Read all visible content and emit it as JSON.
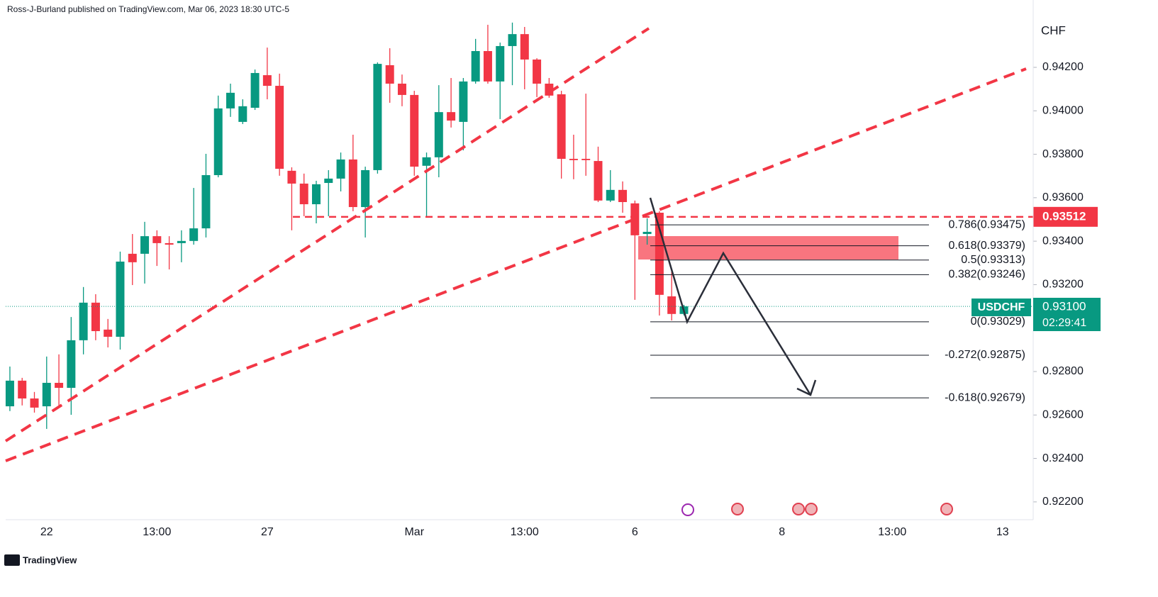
{
  "header": {
    "attribution": "Ross-J-Burland published on TradingView.com, Mar 06, 2023 18:30 UTC-5",
    "logo": "TradingView"
  },
  "chart_data": {
    "type": "candlestick",
    "currency": "CHF",
    "symbol": "USDCHF",
    "up_color": "#089981",
    "down_color": "#f23645",
    "categories": [
      null,
      null,
      null,
      "22",
      null,
      null,
      null,
      null,
      null,
      null,
      null,
      null,
      "13:00",
      null,
      null,
      null,
      null,
      null,
      null,
      null,
      null,
      "27",
      null,
      null,
      null,
      null,
      null,
      null,
      null,
      null,
      null,
      null,
      null,
      "Mar",
      null,
      null,
      null,
      null,
      null,
      null,
      null,
      null,
      "13:00",
      null,
      null,
      null,
      null,
      null,
      null,
      null,
      null,
      "6",
      null,
      null,
      null,
      null,
      null,
      null,
      null,
      null,
      null,
      null,
      null,
      "8",
      null,
      null,
      null,
      null,
      null,
      null,
      null,
      null,
      "13:00",
      null,
      null,
      null,
      null,
      null,
      null,
      null,
      null,
      "13",
      null,
      null
    ],
    "open": [
      0.9264,
      0.92758,
      0.92676,
      0.9264,
      0.92748,
      0.92725,
      0.92944,
      0.93117,
      0.92993,
      0.9296,
      0.93342,
      0.93342,
      0.93423,
      0.93391,
      0.93391,
      0.93401,
      0.93459,
      0.93704,
      0.94011,
      0.93949,
      0.94014,
      0.94164,
      0.94115,
      0.93724,
      0.93665,
      0.9357,
      0.93668,
      0.93688,
      0.93776,
      0.93557,
      0.93727,
      0.9421,
      0.94125,
      0.94073,
      0.93747,
      0.93786,
      0.93994,
      0.93949,
      0.94135,
      0.94275,
      0.94135,
      0.94298,
      0.94353,
      0.94236,
      0.94125,
      0.94076,
      0.93779,
      0.93779,
      0.93769,
      0.93587,
      0.93636,
      0.93574,
      0.93433,
      0.93531,
      0.93146,
      0.93065,
      null,
      null,
      null,
      null,
      null,
      null,
      null,
      null,
      null,
      null,
      null,
      null,
      null,
      null,
      null,
      null,
      null,
      null,
      null,
      null,
      null,
      null,
      null,
      null,
      null,
      null,
      null,
      null
    ],
    "close": [
      0.92758,
      0.92676,
      0.92634,
      0.92748,
      0.92725,
      0.92944,
      0.93117,
      0.92986,
      0.9296,
      0.93306,
      0.93303,
      0.93423,
      0.93391,
      0.93384,
      0.93401,
      0.93459,
      0.93704,
      0.94011,
      0.94083,
      0.94021,
      0.94174,
      0.94115,
      0.93733,
      0.93665,
      0.9357,
      0.93662,
      0.93688,
      0.93776,
      0.93557,
      0.93727,
      0.94216,
      0.94125,
      0.94073,
      0.93743,
      0.93786,
      0.93994,
      0.93955,
      0.94135,
      0.94275,
      0.94135,
      0.94298,
      0.94353,
      0.94236,
      0.94125,
      0.9407,
      0.93779,
      0.93773,
      0.93773,
      0.93587,
      0.93636,
      0.9358,
      0.93427,
      0.93443,
      0.93153,
      0.93065,
      0.931,
      null,
      null,
      null,
      null,
      null,
      null,
      null,
      null,
      null,
      null,
      null,
      null,
      null,
      null,
      null,
      null,
      null,
      null,
      null,
      null,
      null,
      null,
      null,
      null,
      null,
      null,
      null,
      null
    ],
    "high": [
      0.92823,
      0.92771,
      0.92706,
      0.92869,
      0.92879,
      0.93051,
      0.93189,
      0.93156,
      0.93042,
      0.93352,
      0.93433,
      0.93489,
      0.9345,
      0.93423,
      0.9345,
      0.93645,
      0.93802,
      0.9407,
      0.94125,
      0.94053,
      0.9419,
      0.94291,
      0.94171,
      0.9374,
      0.93711,
      0.93678,
      0.93727,
      0.93808,
      0.9389,
      0.93743,
      0.94223,
      0.94288,
      0.94167,
      0.94092,
      0.93808,
      0.94118,
      0.94151,
      0.94151,
      0.94331,
      0.94396,
      0.94314,
      0.94406,
      0.94386,
      0.94242,
      0.94151,
      0.94092,
      0.9389,
      0.94079,
      0.93835,
      0.93727,
      0.93675,
      0.93587,
      0.93505,
      0.93538,
      0.9327,
      0.93107,
      null,
      null,
      null,
      null,
      null,
      null,
      null,
      null,
      null,
      null,
      null,
      null,
      null,
      null,
      null,
      null,
      null,
      null,
      null,
      null,
      null,
      null,
      null,
      null,
      null,
      null,
      null,
      null
    ],
    "low": [
      0.92618,
      0.92644,
      0.92611,
      0.92536,
      0.92644,
      0.92601,
      0.92879,
      0.92944,
      0.92911,
      0.92901,
      0.93198,
      0.93205,
      0.93286,
      0.9327,
      0.93303,
      0.93384,
      0.93417,
      0.93694,
      0.93972,
      0.93939,
      0.94004,
      0.94053,
      0.93701,
      0.9345,
      0.93515,
      0.93482,
      0.93515,
      0.93629,
      0.93538,
      0.93417,
      0.93711,
      0.94037,
      0.94021,
      0.93701,
      0.93515,
      0.93694,
      0.93923,
      0.93818,
      0.94125,
      0.94125,
      0.93962,
      0.94118,
      0.94099,
      0.94063,
      0.9406,
      0.93688,
      0.93685,
      0.93701,
      0.9358,
      0.9358,
      0.93531,
      0.9313,
      0.93384,
      0.93058,
      0.93035,
      0.93058,
      null,
      null,
      null,
      null,
      null,
      null,
      null,
      null,
      null,
      null,
      null,
      null,
      null,
      null,
      null,
      null,
      null,
      null,
      null,
      null,
      null,
      null,
      null,
      null,
      null,
      null,
      null,
      null
    ],
    "ylim": [
      0.92118,
      0.9451
    ],
    "yticks": [
      {
        "value": 0.922,
        "label": "0.92200"
      },
      {
        "value": 0.924,
        "label": "0.92400"
      },
      {
        "value": 0.926,
        "label": "0.92600"
      },
      {
        "value": 0.928,
        "label": "0.92800"
      },
      {
        "value": 0.932,
        "label": "0.93200"
      },
      {
        "value": 0.934,
        "label": "0.93400"
      },
      {
        "value": 0.936,
        "label": "0.93600"
      },
      {
        "value": 0.938,
        "label": "0.93800"
      },
      {
        "value": 0.94,
        "label": "0.94000"
      },
      {
        "value": 0.942,
        "label": "0.94200"
      }
    ],
    "level": {
      "value": 0.93512,
      "label": "0.93512"
    },
    "last_price": {
      "value": 0.931,
      "label": "0.93100"
    },
    "countdown": "02:29:41",
    "fib_levels": [
      {
        "value": 0.93475,
        "label": "0.786(0.93475)"
      },
      {
        "value": 0.93379,
        "label": "0.618(0.93379)"
      },
      {
        "value": 0.93313,
        "label": "0.5(0.93313)"
      },
      {
        "value": 0.93246,
        "label": "0.382(0.93246)"
      },
      {
        "value": 0.93029,
        "label": "0(0.93029)"
      },
      {
        "value": 0.92875,
        "label": "-0.272(0.92875)"
      },
      {
        "value": 0.92679,
        "label": "-0.618(0.92679)"
      }
    ]
  }
}
